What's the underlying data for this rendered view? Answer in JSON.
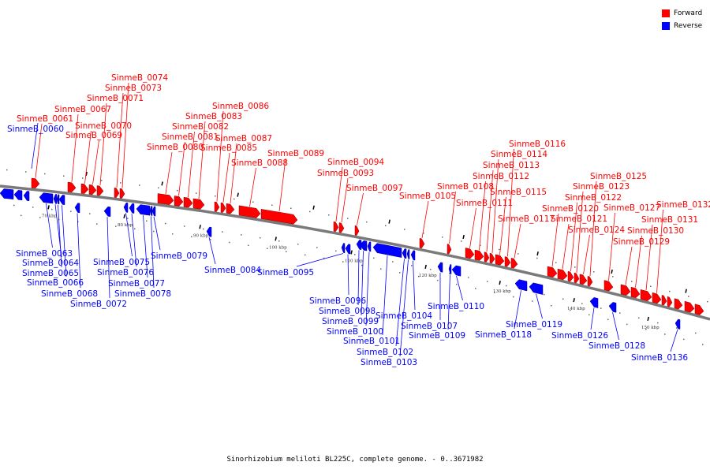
{
  "title": "Sinorhizobium meliloti BL225C, complete genome. - 0..3671982",
  "legend": [
    {
      "label": "Forward",
      "color": "#ff0000"
    },
    {
      "label": "Reverse",
      "color": "#0000ff"
    }
  ],
  "colors": {
    "forward": "#ff0000",
    "reverse": "#0000ff",
    "backbone": "#7a7a7a"
  },
  "ticks": [
    "70 kbp",
    "80 kbp",
    "90 kbp",
    "100 kbp",
    "110 kbp",
    "120 kbp",
    "130 kbp",
    "140 kbp",
    "150 kbp"
  ],
  "genes": [
    {
      "name": "SinmeB_0060",
      "strand": "reverse"
    },
    {
      "name": "SinmeB_0061",
      "strand": "forward"
    },
    {
      "name": "SinmeB_0063",
      "strand": "reverse"
    },
    {
      "name": "SinmeB_0064",
      "strand": "reverse"
    },
    {
      "name": "SinmeB_0065",
      "strand": "reverse"
    },
    {
      "name": "SinmeB_0066",
      "strand": "reverse"
    },
    {
      "name": "SinmeB_0067",
      "strand": "forward"
    },
    {
      "name": "SinmeB_0068",
      "strand": "reverse"
    },
    {
      "name": "SinmeB_0069",
      "strand": "forward"
    },
    {
      "name": "SinmeB_0070",
      "strand": "forward"
    },
    {
      "name": "SinmeB_0071",
      "strand": "forward"
    },
    {
      "name": "SinmeB_0072",
      "strand": "reverse"
    },
    {
      "name": "SinmeB_0073",
      "strand": "forward"
    },
    {
      "name": "SinmeB_0074",
      "strand": "forward"
    },
    {
      "name": "SinmeB_0075",
      "strand": "reverse"
    },
    {
      "name": "SinmeB_0076",
      "strand": "reverse"
    },
    {
      "name": "SinmeB_0077",
      "strand": "reverse"
    },
    {
      "name": "SinmeB_0078",
      "strand": "reverse"
    },
    {
      "name": "SinmeB_0079",
      "strand": "reverse"
    },
    {
      "name": "SinmeB_0080",
      "strand": "forward"
    },
    {
      "name": "SinmeB_0081",
      "strand": "forward"
    },
    {
      "name": "SinmeB_0082",
      "strand": "forward"
    },
    {
      "name": "SinmeB_0083",
      "strand": "forward"
    },
    {
      "name": "SinmeB_0084",
      "strand": "reverse"
    },
    {
      "name": "SinmeB_0085",
      "strand": "forward"
    },
    {
      "name": "SinmeB_0086",
      "strand": "forward"
    },
    {
      "name": "SinmeB_0087",
      "strand": "forward"
    },
    {
      "name": "SinmeB_0088",
      "strand": "forward"
    },
    {
      "name": "SinmeB_0089",
      "strand": "forward"
    },
    {
      "name": "SinmeB_0093",
      "strand": "forward"
    },
    {
      "name": "SinmeB_0094",
      "strand": "forward"
    },
    {
      "name": "SinmeB_0095",
      "strand": "reverse"
    },
    {
      "name": "SinmeB_0096",
      "strand": "reverse"
    },
    {
      "name": "SinmeB_0097",
      "strand": "forward"
    },
    {
      "name": "SinmeB_0098",
      "strand": "reverse"
    },
    {
      "name": "SinmeB_0099",
      "strand": "reverse"
    },
    {
      "name": "SinmeB_0100",
      "strand": "reverse"
    },
    {
      "name": "SinmeB_0101",
      "strand": "reverse"
    },
    {
      "name": "SinmeB_0102",
      "strand": "reverse"
    },
    {
      "name": "SinmeB_0103",
      "strand": "reverse"
    },
    {
      "name": "SinmeB_0104",
      "strand": "reverse"
    },
    {
      "name": "SinmeB_0105",
      "strand": "forward"
    },
    {
      "name": "SinmeB_0107",
      "strand": "reverse"
    },
    {
      "name": "SinmeB_0108",
      "strand": "forward"
    },
    {
      "name": "SinmeB_0109",
      "strand": "reverse"
    },
    {
      "name": "SinmeB_0110",
      "strand": "reverse"
    },
    {
      "name": "SinmeB_0111",
      "strand": "forward"
    },
    {
      "name": "SinmeB_0112",
      "strand": "forward"
    },
    {
      "name": "SinmeB_0113",
      "strand": "forward"
    },
    {
      "name": "SinmeB_0114",
      "strand": "forward"
    },
    {
      "name": "SinmeB_0115",
      "strand": "forward"
    },
    {
      "name": "SinmeB_0116",
      "strand": "forward"
    },
    {
      "name": "SinmeB_0117",
      "strand": "forward"
    },
    {
      "name": "SinmeB_0118",
      "strand": "reverse"
    },
    {
      "name": "SinmeB_0119",
      "strand": "reverse"
    },
    {
      "name": "SinmeB_0120",
      "strand": "forward"
    },
    {
      "name": "SinmeB_0121",
      "strand": "forward"
    },
    {
      "name": "SinmeB_0122",
      "strand": "forward"
    },
    {
      "name": "SinmeB_0123",
      "strand": "forward"
    },
    {
      "name": "SinmeB_0124",
      "strand": "forward"
    },
    {
      "name": "SinmeB_0125",
      "strand": "forward"
    },
    {
      "name": "SinmeB_0126",
      "strand": "reverse"
    },
    {
      "name": "SinmeB_0127",
      "strand": "forward"
    },
    {
      "name": "SinmeB_0128",
      "strand": "reverse"
    },
    {
      "name": "SinmeB_0129",
      "strand": "forward"
    },
    {
      "name": "SinmeB_0130",
      "strand": "forward"
    },
    {
      "name": "SinmeB_0131",
      "strand": "forward"
    },
    {
      "name": "SinmeB_0132",
      "strand": "forward"
    },
    {
      "name": "SinmeB_0136",
      "strand": "reverse"
    }
  ]
}
